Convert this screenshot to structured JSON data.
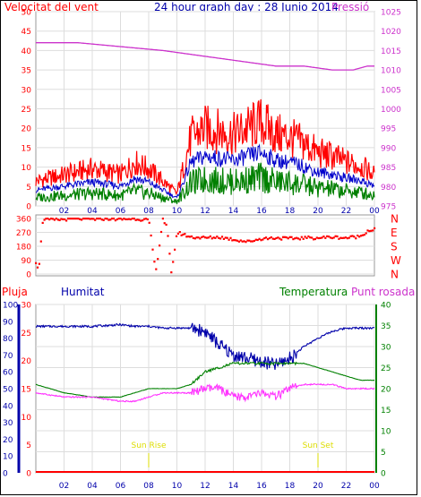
{
  "header": {
    "left": "Velocitat del vent",
    "center": "24 hour graph day : 28 Junio 2014",
    "right": "Pressió"
  },
  "bottom_header": {
    "pluja": "Pluja",
    "humitat": "Humitat",
    "temperatura": "Temperatura",
    "punt_rosada": "Punt rosada"
  },
  "compass": [
    "N",
    "W",
    "S",
    "E",
    "N"
  ],
  "markers": {
    "sunrise": "Sun Rise",
    "sunset": "Sun Set"
  },
  "colors": {
    "wind_gust": "#ff0000",
    "wind_avg": "#0000cc",
    "wind_low": "#008000",
    "pressure": "#cc33cc",
    "direction": "#ff0000",
    "humidity": "#0000aa",
    "temperature": "#008000",
    "dewpoint": "#ff33ff",
    "rain": "#ff0000",
    "sun": "#dddd00"
  },
  "chart_data": [
    {
      "type": "line",
      "title": "24 hour graph day : 28 Junio 2014",
      "x_ticks": [
        "02",
        "04",
        "06",
        "08",
        "10",
        "12",
        "14",
        "16",
        "18",
        "20",
        "22",
        "00"
      ],
      "y_left_label": "Velocitat del vent",
      "y_left_ticks": [
        0,
        5,
        10,
        15,
        20,
        25,
        30,
        35,
        40,
        45,
        50
      ],
      "y_right_label": "Pressió",
      "y_right_ticks": [
        975,
        980,
        985,
        990,
        995,
        1000,
        1005,
        1010,
        1015,
        1020,
        1025
      ],
      "series": [
        {
          "name": "Velocitat del vent",
          "x": [
            0,
            2,
            4,
            6,
            7,
            8,
            9,
            10,
            11,
            12,
            13,
            14,
            15,
            16,
            17,
            18,
            19,
            20,
            21,
            22,
            23,
            24
          ],
          "values": [
            8,
            10,
            12,
            10,
            14,
            12,
            8,
            4,
            22,
            25,
            24,
            23,
            25,
            27,
            23,
            22,
            20,
            17,
            16,
            14,
            13,
            10
          ]
        },
        {
          "name": "Pressió",
          "x": [
            0,
            3,
            6,
            9,
            11,
            13,
            15,
            17,
            19,
            21,
            22.5,
            23.5,
            24
          ],
          "values": [
            1017,
            1017,
            1016,
            1015,
            1014,
            1013,
            1012,
            1011,
            1011,
            1010,
            1010,
            1011,
            1011
          ]
        }
      ]
    },
    {
      "type": "scatter",
      "y_ticks": [
        0,
        90,
        180,
        270,
        360
      ],
      "y_right_ticks": [
        "N",
        "W",
        "S",
        "E",
        "N"
      ],
      "series": [
        {
          "x": [
            0,
            0.2,
            0.5,
            1,
            2,
            3,
            4,
            5,
            6,
            7,
            8,
            8.5,
            9,
            9.3,
            9.6,
            10,
            11,
            12,
            13,
            14,
            15,
            16,
            17,
            18,
            19,
            20,
            21,
            22,
            23,
            23.5,
            24
          ],
          "values": [
            80,
            30,
            360,
            350,
            355,
            360,
            355,
            360,
            355,
            360,
            350,
            10,
            360,
            300,
            5,
            270,
            240,
            235,
            240,
            225,
            210,
            230,
            235,
            230,
            235,
            235,
            240,
            235,
            245,
            280,
            290
          ]
        }
      ]
    },
    {
      "type": "line",
      "y_pluja_ticks": [
        0,
        10,
        20,
        30,
        40,
        50,
        60,
        70,
        80,
        90,
        100
      ],
      "y_hum_ticks": [
        0,
        5,
        10,
        15,
        20,
        25,
        30
      ],
      "y_temp_ticks": [
        0,
        5,
        10,
        15,
        20,
        25,
        30,
        35,
        40
      ],
      "series": [
        {
          "name": "Humitat",
          "x": [
            0,
            2,
            4,
            6,
            7,
            8,
            9,
            10,
            11,
            12,
            13,
            14,
            15,
            16,
            17,
            18,
            19,
            20,
            21,
            22,
            23,
            24
          ],
          "values": [
            87,
            87,
            87,
            88,
            87,
            87,
            86,
            86,
            86,
            84,
            76,
            70,
            68,
            66,
            64,
            68,
            75,
            80,
            84,
            86,
            86,
            86
          ]
        },
        {
          "name": "Temperatura",
          "x": [
            0,
            2,
            4,
            6,
            7,
            8,
            9,
            10,
            11,
            12,
            13,
            14,
            15,
            16,
            17,
            18,
            19,
            20,
            21,
            22,
            23,
            24
          ],
          "values": [
            21,
            19,
            18,
            18,
            19,
            20,
            20,
            20,
            21,
            24,
            25,
            26,
            26,
            26,
            26,
            26,
            26,
            25,
            24,
            23,
            22,
            22
          ]
        },
        {
          "name": "Punt rosada",
          "x": [
            0,
            2,
            4,
            6,
            7,
            8,
            9,
            10,
            11,
            12,
            13,
            14,
            15,
            16,
            17,
            18,
            19,
            20,
            21,
            22,
            23,
            24
          ],
          "values": [
            19,
            18,
            18,
            17,
            17,
            18,
            19,
            19,
            19,
            20,
            20,
            18,
            18,
            19,
            18,
            20,
            21,
            21,
            21,
            20,
            20,
            20
          ]
        },
        {
          "name": "Pluja",
          "x": [
            0,
            24
          ],
          "values": [
            0,
            0
          ]
        }
      ],
      "sunrise_hour": 8,
      "sunset_hour": 20
    }
  ]
}
